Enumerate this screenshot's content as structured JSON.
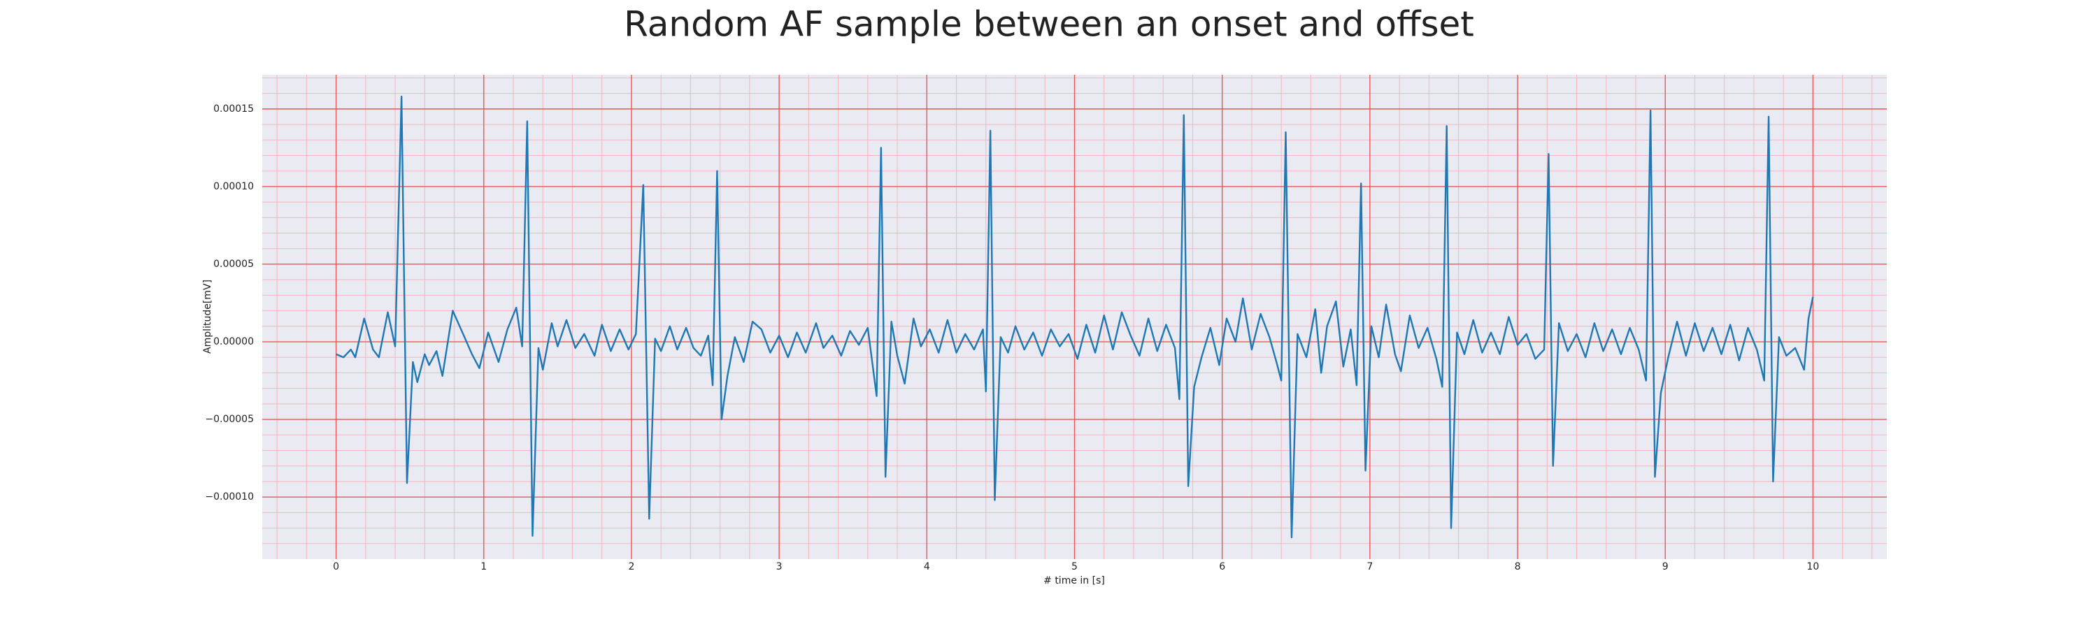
{
  "chart_data": {
    "type": "line",
    "title": "Random AF sample between an onset and offset",
    "x_label": "# time in [s]",
    "y_label": "Amplitude[mV]",
    "x": [
      0.0,
      0.05,
      0.1,
      0.13,
      0.19,
      0.25,
      0.29,
      0.35,
      0.4,
      0.443,
      0.48,
      0.52,
      0.55,
      0.6,
      0.63,
      0.68,
      0.72,
      0.79,
      0.86,
      0.92,
      0.97,
      1.03,
      1.1,
      1.16,
      1.22,
      1.26,
      1.294,
      1.33,
      1.37,
      1.4,
      1.46,
      1.5,
      1.56,
      1.62,
      1.68,
      1.75,
      1.8,
      1.86,
      1.92,
      1.98,
      2.03,
      2.08,
      2.12,
      2.16,
      2.2,
      2.26,
      2.31,
      2.37,
      2.42,
      2.47,
      2.52,
      2.55,
      2.58,
      2.61,
      2.65,
      2.7,
      2.76,
      2.82,
      2.88,
      2.94,
      3.0,
      3.06,
      3.12,
      3.18,
      3.25,
      3.3,
      3.36,
      3.42,
      3.48,
      3.54,
      3.6,
      3.66,
      3.69,
      3.72,
      3.76,
      3.8,
      3.85,
      3.91,
      3.96,
      4.02,
      4.08,
      4.14,
      4.2,
      4.26,
      4.32,
      4.38,
      4.4,
      4.43,
      4.46,
      4.5,
      4.55,
      4.6,
      4.66,
      4.72,
      4.78,
      4.84,
      4.9,
      4.96,
      5.02,
      5.08,
      5.14,
      5.2,
      5.26,
      5.32,
      5.38,
      5.44,
      5.5,
      5.56,
      5.62,
      5.68,
      5.71,
      5.74,
      5.77,
      5.81,
      5.86,
      5.92,
      5.98,
      6.03,
      6.09,
      6.14,
      6.2,
      6.26,
      6.32,
      6.37,
      6.4,
      6.43,
      6.47,
      6.51,
      6.57,
      6.63,
      6.67,
      6.71,
      6.77,
      6.82,
      6.87,
      6.91,
      6.94,
      6.97,
      7.01,
      7.06,
      7.11,
      7.17,
      7.21,
      7.27,
      7.33,
      7.39,
      7.45,
      7.49,
      7.52,
      7.55,
      7.59,
      7.64,
      7.7,
      7.76,
      7.82,
      7.88,
      7.94,
      8.0,
      8.06,
      8.12,
      8.18,
      8.21,
      8.24,
      8.28,
      8.34,
      8.4,
      8.46,
      8.52,
      8.58,
      8.64,
      8.7,
      8.76,
      8.82,
      8.87,
      8.9,
      8.93,
      8.97,
      9.02,
      9.08,
      9.14,
      9.2,
      9.26,
      9.32,
      9.38,
      9.44,
      9.5,
      9.56,
      9.62,
      9.67,
      9.7,
      9.73,
      9.77,
      9.82,
      9.88,
      9.94,
      9.97,
      10.0
    ],
    "values": [
      -8e-06,
      -1e-05,
      -5e-06,
      -1e-05,
      1.5e-05,
      -5e-06,
      -1e-05,
      1.9e-05,
      -3e-06,
      0.000158,
      -9.1e-05,
      -1.3e-05,
      -2.6e-05,
      -8e-06,
      -1.5e-05,
      -6e-06,
      -2.2e-05,
      2e-05,
      5e-06,
      -8e-06,
      -1.7e-05,
      6e-06,
      -1.3e-05,
      8e-06,
      2.2e-05,
      -3e-06,
      0.000142,
      -0.000125,
      -4e-06,
      -1.8e-05,
      1.2e-05,
      -3e-06,
      1.4e-05,
      -4e-06,
      5e-06,
      -9e-06,
      1.1e-05,
      -6e-06,
      8e-06,
      -5e-06,
      5e-06,
      0.000101,
      -0.000114,
      2e-06,
      -6e-06,
      1e-05,
      -5e-06,
      9e-06,
      -4e-06,
      -9e-06,
      4e-06,
      -2.8e-05,
      0.00011,
      -5e-05,
      -2.2e-05,
      3e-06,
      -1.3e-05,
      1.3e-05,
      8e-06,
      -7e-06,
      4e-06,
      -1e-05,
      6e-06,
      -7e-06,
      1.2e-05,
      -4e-06,
      4e-06,
      -9e-06,
      7e-06,
      -2e-06,
      9e-06,
      -3.5e-05,
      0.000125,
      -8.7e-05,
      1.3e-05,
      -9e-06,
      -2.7e-05,
      1.5e-05,
      -3e-06,
      8e-06,
      -7e-06,
      1.4e-05,
      -7e-06,
      5e-06,
      -5e-06,
      8e-06,
      -3.2e-05,
      0.000136,
      -0.000102,
      3e-06,
      -7e-06,
      1e-05,
      -5e-06,
      6e-06,
      -9e-06,
      8e-06,
      -3e-06,
      5e-06,
      -1.1e-05,
      1.1e-05,
      -7e-06,
      1.7e-05,
      -5e-06,
      1.9e-05,
      4e-06,
      -9e-06,
      1.5e-05,
      -6e-06,
      1.1e-05,
      -4e-06,
      -3.7e-05,
      0.000146,
      -9.3e-05,
      -2.9e-05,
      -1e-05,
      9e-06,
      -1.5e-05,
      1.5e-05,
      0.0,
      2.8e-05,
      -5e-06,
      1.8e-05,
      3e-06,
      -1.4e-05,
      -2.5e-05,
      0.000135,
      -0.000126,
      5e-06,
      -1e-05,
      2.1e-05,
      -2e-05,
      1e-05,
      2.6e-05,
      -1.6e-05,
      8e-06,
      -2.8e-05,
      0.000102,
      -8.3e-05,
      1e-05,
      -1e-05,
      2.4e-05,
      -8e-06,
      -1.9e-05,
      1.7e-05,
      -4e-06,
      9e-06,
      -1.1e-05,
      -2.9e-05,
      0.000139,
      -0.00012,
      6e-06,
      -8e-06,
      1.4e-05,
      -7e-06,
      6e-06,
      -8e-06,
      1.6e-05,
      -2e-06,
      5e-06,
      -1.1e-05,
      -5e-06,
      0.000121,
      -8e-05,
      1.2e-05,
      -6e-06,
      5e-06,
      -1e-05,
      1.2e-05,
      -6e-06,
      8e-06,
      -8e-06,
      9e-06,
      -5e-06,
      -2.5e-05,
      0.000149,
      -8.7e-05,
      -3.3e-05,
      -1e-05,
      1.3e-05,
      -9e-06,
      1.2e-05,
      -6e-06,
      9e-06,
      -8e-06,
      1.1e-05,
      -1.2e-05,
      9e-06,
      -5e-06,
      -2.5e-05,
      0.000145,
      -9e-05,
      3e-06,
      -9e-06,
      -4e-06,
      -1.8e-05,
      1.5e-05,
      2.9e-05
    ],
    "color": "#1f77b4",
    "xlim": [
      -0.5,
      10.5
    ],
    "xticks": [
      0,
      1,
      2,
      3,
      4,
      5,
      6,
      7,
      8,
      9,
      10
    ],
    "ylim": [
      -0.00014,
      0.000172
    ],
    "yticks": [
      {
        "value": -0.0001,
        "label": "−0.00010"
      },
      {
        "value": -5e-05,
        "label": "−0.00005"
      },
      {
        "value": 0,
        "label": "0.00000"
      },
      {
        "value": 5e-05,
        "label": "0.00005"
      },
      {
        "value": 0.0001,
        "label": "0.00010"
      },
      {
        "value": 0.00015,
        "label": "0.00015"
      }
    ],
    "grid": true,
    "minor_grid": 5
  }
}
